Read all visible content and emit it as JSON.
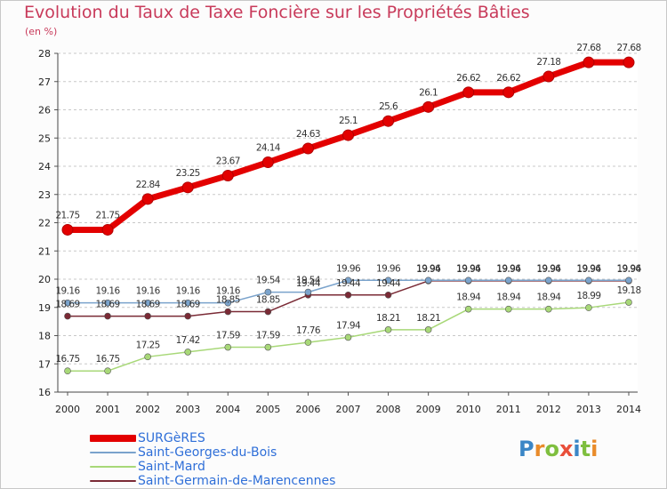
{
  "title": "Evolution du Taux de Taxe Foncière sur les Propriétés Bâties",
  "subtitle": "(en %)",
  "colors": {
    "title": "#c83a5a",
    "axis_text": "#222222",
    "grid": "#c8c8c8",
    "legend_text": "#2f6fd8"
  },
  "logo": {
    "text": "Proxiti",
    "letters": [
      "P",
      "r",
      "o",
      "x",
      "i",
      "t",
      "i"
    ],
    "colors": [
      "#3b86c6",
      "#e98b2a",
      "#7fbf3f",
      "#e94f3a",
      "#3b86c6",
      "#7fbf3f",
      "#e98b2a"
    ]
  },
  "chart_data": {
    "type": "line",
    "x": [
      "2000",
      "2001",
      "2002",
      "2003",
      "2004",
      "2005",
      "2006",
      "2007",
      "2008",
      "2009",
      "2010",
      "2011",
      "2012",
      "2013",
      "2014"
    ],
    "ylim": [
      16,
      28
    ],
    "yticks": [
      "16",
      "17",
      "18",
      "19",
      "20",
      "21",
      "22",
      "23",
      "24",
      "25",
      "26",
      "27",
      "28"
    ],
    "grid": "horizontal dashed",
    "legend_position": "bottom-left",
    "series": [
      {
        "name": "SURGèRES",
        "color": "#e30000",
        "values": [
          21.75,
          21.75,
          22.84,
          23.25,
          23.67,
          24.14,
          24.63,
          25.1,
          25.6,
          26.1,
          26.62,
          26.62,
          27.18,
          27.68,
          27.68
        ],
        "labels": [
          "21.75",
          "21.75",
          "22.84",
          "23.25",
          "23.67",
          "24.14",
          "24.63",
          "25.1",
          "25.6",
          "26.1",
          "26.62",
          "26.62",
          "27.18",
          "27.68",
          "27.68"
        ]
      },
      {
        "name": "Saint-Georges-du-Bois",
        "color": "#7aa3cc",
        "values": [
          19.16,
          19.16,
          19.16,
          19.16,
          19.16,
          19.54,
          19.54,
          19.96,
          19.96,
          19.96,
          19.96,
          19.96,
          19.96,
          19.96,
          19.96
        ],
        "labels": [
          "19.16",
          "19.16",
          "19.16",
          "19.16",
          "19.16",
          "19.54",
          "19.54",
          "19.96",
          "19.96",
          "19.96",
          "19.96",
          "19.96",
          "19.96",
          "19.96",
          "19.96"
        ]
      },
      {
        "name": "Saint-Mard",
        "color": "#a8d878",
        "values": [
          16.75,
          16.75,
          17.25,
          17.42,
          17.59,
          17.59,
          17.76,
          17.94,
          18.21,
          18.21,
          18.94,
          18.94,
          18.94,
          18.99,
          19.18
        ],
        "labels": [
          "16.75",
          "16.75",
          "17.25",
          "17.42",
          "17.59",
          "17.59",
          "17.76",
          "17.94",
          "18.21",
          "18.21",
          "18.94",
          "18.94",
          "18.94",
          "18.99",
          "19.18"
        ]
      },
      {
        "name": "Saint-Germain-de-Marencennes",
        "color": "#7a2a35",
        "values": [
          18.69,
          18.69,
          18.69,
          18.69,
          18.85,
          18.85,
          19.44,
          19.44,
          19.44,
          19.94,
          19.94,
          19.94,
          19.94,
          19.94,
          19.94
        ],
        "labels": [
          "18.69",
          "18.69",
          "18.69",
          "18.69",
          "18.85",
          "18.85",
          "19.44",
          "19.44",
          "19.44",
          "19.94",
          "19.94",
          "19.94",
          "19.94",
          "19.94",
          "19.94"
        ]
      }
    ]
  }
}
